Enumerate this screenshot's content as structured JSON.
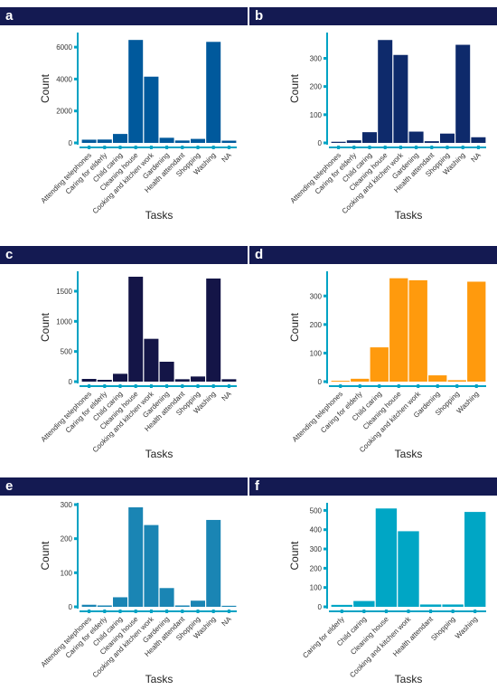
{
  "figure": {
    "axis_color": "#00a3c4",
    "header_color": "#141a52"
  },
  "chart_data": [
    {
      "panel": "a",
      "type": "bar",
      "color": "#00599c",
      "categories": [
        "Attending telephones",
        "Caring for elderly",
        "Child caring",
        "Cleaning house",
        "Cooking and kitchen work",
        "Gardening",
        "Health attendant",
        "Shopping",
        "Washing",
        "NA"
      ],
      "values": [
        200,
        210,
        560,
        6450,
        4150,
        320,
        150,
        250,
        6330,
        140
      ],
      "yticks": [
        0,
        2000,
        4000,
        6000
      ],
      "ylim": [
        0,
        6800
      ],
      "xlabel": "Tasks",
      "ylabel": "Count"
    },
    {
      "panel": "b",
      "type": "bar",
      "color": "#0e2a6b",
      "categories": [
        "Attending telephones",
        "Caring for elderly",
        "Child caring",
        "Cleaning house",
        "Cooking and kitchen work",
        "Gardening",
        "Health attendant",
        "Shopping",
        "Washing",
        "NA"
      ],
      "values": [
        4,
        9,
        38,
        365,
        312,
        40,
        6,
        33,
        348,
        20
      ],
      "yticks": [
        0,
        100,
        200,
        300
      ],
      "ylim": [
        0,
        385
      ],
      "xlabel": "Tasks",
      "ylabel": "Count"
    },
    {
      "panel": "c",
      "type": "bar",
      "color": "#141547",
      "categories": [
        "Attending telephones",
        "Caring for elderly",
        "Child caring",
        "Cleaning house",
        "Cooking and kitchen work",
        "Gardening",
        "Health attendant",
        "Shopping",
        "Washing",
        "NA"
      ],
      "values": [
        45,
        30,
        130,
        1740,
        710,
        330,
        40,
        85,
        1710,
        40
      ],
      "yticks": [
        0,
        500,
        1000,
        1500
      ],
      "ylim": [
        0,
        1800
      ],
      "xlabel": "Tasks",
      "ylabel": "Count"
    },
    {
      "panel": "d",
      "type": "bar",
      "color": "#ff9a0d",
      "categories": [
        "Attending telephones",
        "Caring for elderly",
        "Child caring",
        "Cleaning house",
        "Cooking and kitchen work",
        "Gardening",
        "Shopping",
        "Washing"
      ],
      "values": [
        3,
        10,
        120,
        362,
        355,
        22,
        5,
        350
      ],
      "yticks": [
        0,
        100,
        200,
        300
      ],
      "ylim": [
        0,
        380
      ],
      "xlabel": "Tasks",
      "ylabel": "Count"
    },
    {
      "panel": "e",
      "type": "bar",
      "color": "#1a85b4",
      "categories": [
        "Attending telephones",
        "Caring for elderly",
        "Child caring",
        "Cleaning house",
        "Cooking and kitchen work",
        "Gardening",
        "Health attendant",
        "Shopping",
        "Washing",
        "NA"
      ],
      "values": [
        6,
        4,
        28,
        292,
        240,
        55,
        4,
        18,
        255,
        3
      ],
      "yticks": [
        0,
        100,
        200,
        300
      ],
      "ylim": [
        0,
        300
      ],
      "xlabel": "Tasks",
      "ylabel": "Count"
    },
    {
      "panel": "f",
      "type": "bar",
      "color": "#00a6c5",
      "categories": [
        "Caring for elderly",
        "Child caring",
        "Cleaning house",
        "Cooking and kitchen work",
        "Health attendant",
        "Shopping",
        "Washing"
      ],
      "values": [
        10,
        30,
        510,
        392,
        12,
        12,
        492
      ],
      "yticks": [
        0,
        100,
        200,
        300,
        400,
        500
      ],
      "ylim": [
        0,
        530
      ],
      "xlabel": "Tasks",
      "ylabel": "Count"
    }
  ]
}
